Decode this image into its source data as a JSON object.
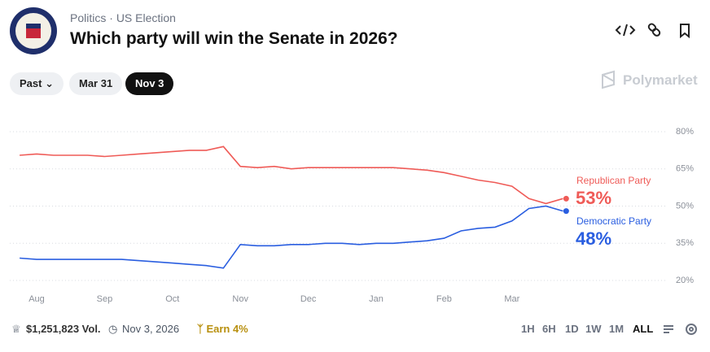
{
  "header": {
    "breadcrumb": [
      "Politics",
      "US Election"
    ],
    "title": "Which party will win the Senate in 2026?"
  },
  "filters": [
    "Past",
    "Mar 31",
    "Nov 3"
  ],
  "brand": "Polymarket",
  "footer": {
    "volume": "$1,251,823 Vol.",
    "date": "Nov 3, 2026",
    "reward": "Earn 4%"
  },
  "ranges": [
    "1H",
    "6H",
    "1D",
    "1W",
    "1M",
    "ALL"
  ],
  "chart_data": {
    "type": "line",
    "categories": [
      null,
      "Aug",
      null,
      null,
      null,
      "Sep",
      null,
      null,
      null,
      "Oct",
      null,
      null,
      null,
      "Nov",
      null,
      null,
      null,
      "Dec",
      null,
      null,
      null,
      "Jan",
      null,
      null,
      null,
      "Feb",
      null,
      null,
      null,
      "Mar",
      null,
      null,
      null
    ],
    "series": [
      {
        "name": "Republican Party",
        "color": "#ef5b57",
        "values": [
          70.5,
          71,
          70.5,
          70.5,
          70.5,
          70,
          70.5,
          71,
          71.5,
          72,
          72.5,
          72.5,
          74,
          66,
          65.5,
          66,
          65,
          65.5,
          65.5,
          65.5,
          65.5,
          65.5,
          65.5,
          65,
          64.5,
          63.5,
          62,
          60.5,
          59.5,
          58,
          53,
          51,
          53
        ],
        "value_labels": [
          null,
          null,
          null,
          null,
          null,
          null,
          null,
          null,
          null,
          null,
          null,
          null,
          null,
          null,
          null,
          null,
          null,
          null,
          null,
          null,
          null,
          null,
          null,
          null,
          null,
          null,
          null,
          null,
          null,
          null,
          null,
          null,
          "53%"
        ]
      },
      {
        "name": "Democratic Party",
        "color": "#2a5ee0",
        "values": [
          29,
          28.5,
          28.5,
          28.5,
          28.5,
          28.5,
          28.5,
          28,
          27.5,
          27,
          26.5,
          26,
          25,
          34.5,
          34,
          34,
          34.5,
          34.5,
          35,
          35,
          34.5,
          35,
          35,
          35.5,
          36,
          37,
          40,
          41,
          41.5,
          44,
          49,
          50,
          48
        ],
        "value_labels": [
          null,
          null,
          null,
          null,
          null,
          null,
          null,
          null,
          null,
          null,
          null,
          null,
          null,
          null,
          null,
          null,
          null,
          null,
          null,
          null,
          null,
          null,
          null,
          null,
          null,
          null,
          null,
          null,
          null,
          null,
          null,
          null,
          "48%"
        ]
      }
    ],
    "ylim": [
      17,
      83
    ],
    "yticks": [
      {
        "value": 20,
        "label": "20%"
      },
      {
        "value": 35,
        "label": "35%"
      },
      {
        "value": 50,
        "label": "50%"
      },
      {
        "value": 65,
        "label": "65%"
      },
      {
        "value": 80,
        "label": "80%"
      }
    ],
    "grid": true
  }
}
